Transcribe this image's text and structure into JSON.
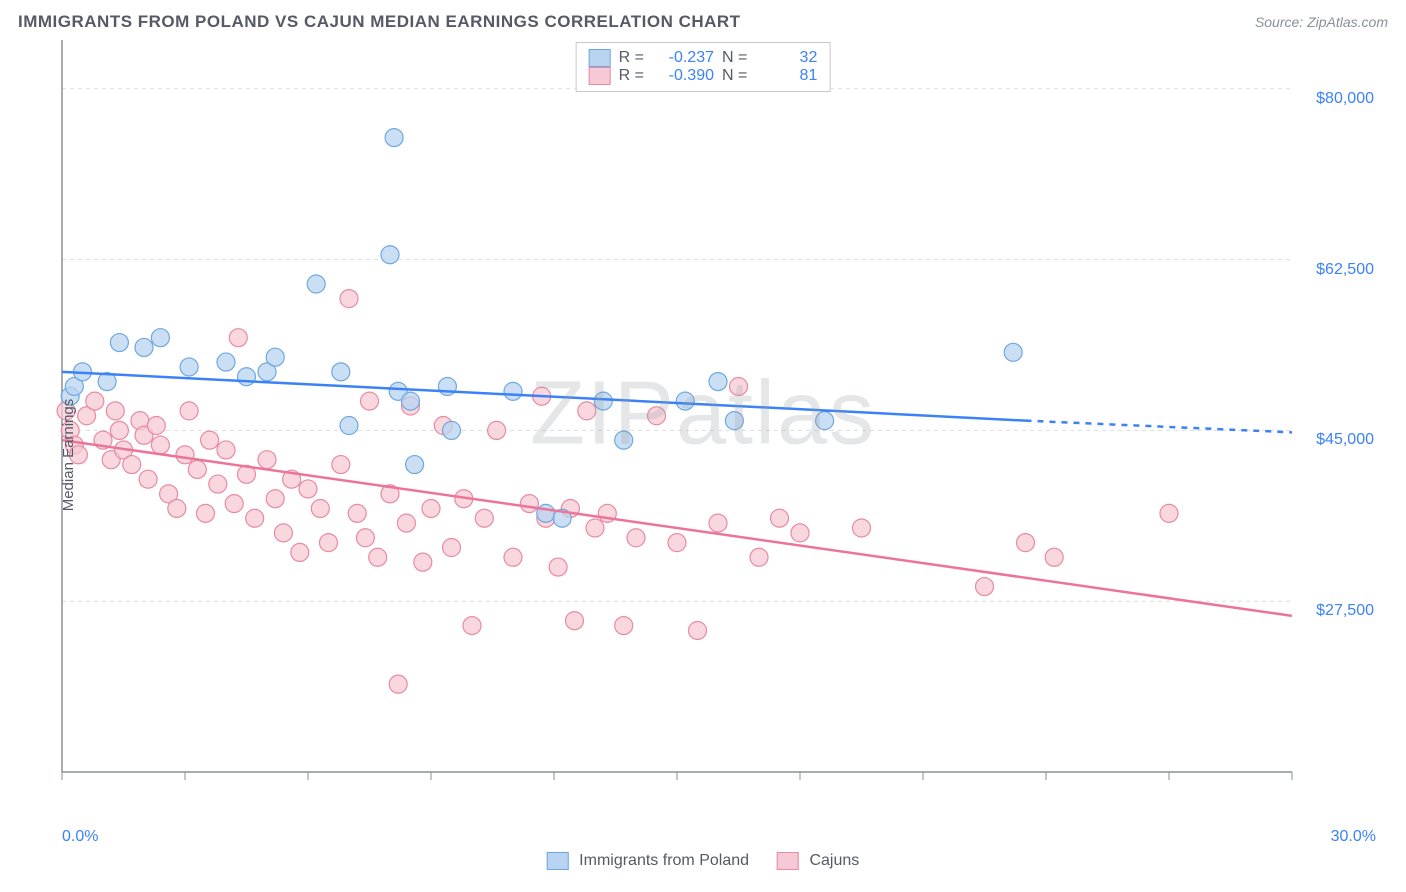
{
  "header": {
    "title": "IMMIGRANTS FROM POLAND VS CAJUN MEDIAN EARNINGS CORRELATION CHART",
    "source_label": "Source: ZipAtlas.com"
  },
  "watermark": "ZIPatlas",
  "chart": {
    "type": "scatter",
    "ylabel": "Median Earnings",
    "background_color": "#ffffff",
    "grid_color": "#dcdde0",
    "axis_color": "#8a8f99",
    "series_colors": {
      "poland_fill": "#b8d4f0",
      "poland_stroke": "#6fa8e0",
      "poland_line": "#3b82f6",
      "cajun_fill": "#f6c9d4",
      "cajun_stroke": "#e88aa2",
      "cajun_line": "#ec7498"
    },
    "marker_radius": 9,
    "marker_opacity": 0.75,
    "line_width": 2.5,
    "xlim": [
      0,
      30
    ],
    "ylim": [
      10000,
      85000
    ],
    "x_ticks": [
      0,
      3,
      6,
      9,
      12,
      15,
      18,
      21,
      24,
      27,
      30
    ],
    "y_gridlines": [
      27500,
      45000,
      62500,
      80000
    ],
    "x_tick_labels": {
      "start": "0.0%",
      "end": "30.0%"
    },
    "y_tick_labels": [
      "$80,000",
      "$62,500",
      "$45,000",
      "$27,500"
    ],
    "stats_box": {
      "rows": [
        {
          "swatch_fill": "#b8d4f0",
          "swatch_stroke": "#6fa8e0",
          "r_label": "R =",
          "r": "-0.237",
          "n_label": "N =",
          "n": "32"
        },
        {
          "swatch_fill": "#f6c9d4",
          "swatch_stroke": "#e88aa2",
          "r_label": "R =",
          "r": "-0.390",
          "n_label": "N =",
          "n": "81"
        }
      ]
    },
    "bottom_legend": [
      {
        "swatch_fill": "#b8d4f0",
        "swatch_stroke": "#6fa8e0",
        "label": "Immigrants from Poland"
      },
      {
        "swatch_fill": "#f6c9d4",
        "swatch_stroke": "#e88aa2",
        "label": "Cajuns"
      }
    ],
    "trend_lines": {
      "poland": {
        "x1": 0,
        "y1": 51000,
        "x2": 23.5,
        "y2": 46000,
        "dash_to_x": 30,
        "dash_to_y": 44800
      },
      "cajun": {
        "x1": 0,
        "y1": 44000,
        "x2": 30,
        "y2": 26000
      }
    },
    "series": {
      "poland": [
        [
          0.2,
          48500
        ],
        [
          0.3,
          49500
        ],
        [
          0.5,
          51000
        ],
        [
          1.1,
          50000
        ],
        [
          1.4,
          54000
        ],
        [
          2.0,
          53500
        ],
        [
          2.4,
          54500
        ],
        [
          3.1,
          51500
        ],
        [
          4.0,
          52000
        ],
        [
          4.5,
          50500
        ],
        [
          5.0,
          51000
        ],
        [
          5.2,
          52500
        ],
        [
          6.2,
          60000
        ],
        [
          6.8,
          51000
        ],
        [
          7.0,
          45500
        ],
        [
          8.0,
          63000
        ],
        [
          8.1,
          75000
        ],
        [
          8.2,
          49000
        ],
        [
          8.5,
          48000
        ],
        [
          8.6,
          41500
        ],
        [
          9.4,
          49500
        ],
        [
          9.5,
          45000
        ],
        [
          11.0,
          49000
        ],
        [
          11.8,
          36500
        ],
        [
          12.2,
          36000
        ],
        [
          13.2,
          48000
        ],
        [
          13.7,
          44000
        ],
        [
          15.2,
          48000
        ],
        [
          16.0,
          50000
        ],
        [
          16.4,
          46000
        ],
        [
          18.6,
          46000
        ],
        [
          23.2,
          53000
        ]
      ],
      "cajun": [
        [
          0.1,
          47000
        ],
        [
          0.2,
          45000
        ],
        [
          0.3,
          43500
        ],
        [
          0.4,
          42500
        ],
        [
          0.6,
          46500
        ],
        [
          0.8,
          48000
        ],
        [
          1.0,
          44000
        ],
        [
          1.2,
          42000
        ],
        [
          1.3,
          47000
        ],
        [
          1.4,
          45000
        ],
        [
          1.5,
          43000
        ],
        [
          1.7,
          41500
        ],
        [
          1.9,
          46000
        ],
        [
          2.0,
          44500
        ],
        [
          2.1,
          40000
        ],
        [
          2.3,
          45500
        ],
        [
          2.4,
          43500
        ],
        [
          2.6,
          38500
        ],
        [
          2.8,
          37000
        ],
        [
          3.0,
          42500
        ],
        [
          3.1,
          47000
        ],
        [
          3.3,
          41000
        ],
        [
          3.5,
          36500
        ],
        [
          3.6,
          44000
        ],
        [
          3.8,
          39500
        ],
        [
          4.0,
          43000
        ],
        [
          4.2,
          37500
        ],
        [
          4.3,
          54500
        ],
        [
          4.5,
          40500
        ],
        [
          4.7,
          36000
        ],
        [
          5.0,
          42000
        ],
        [
          5.2,
          38000
        ],
        [
          5.4,
          34500
        ],
        [
          5.6,
          40000
        ],
        [
          5.8,
          32500
        ],
        [
          6.0,
          39000
        ],
        [
          6.3,
          37000
        ],
        [
          6.5,
          33500
        ],
        [
          6.8,
          41500
        ],
        [
          7.0,
          58500
        ],
        [
          7.2,
          36500
        ],
        [
          7.4,
          34000
        ],
        [
          7.5,
          48000
        ],
        [
          7.7,
          32000
        ],
        [
          8.0,
          38500
        ],
        [
          8.2,
          19000
        ],
        [
          8.4,
          35500
        ],
        [
          8.5,
          47500
        ],
        [
          8.8,
          31500
        ],
        [
          9.0,
          37000
        ],
        [
          9.3,
          45500
        ],
        [
          9.5,
          33000
        ],
        [
          9.8,
          38000
        ],
        [
          10.0,
          25000
        ],
        [
          10.3,
          36000
        ],
        [
          10.6,
          45000
        ],
        [
          11.0,
          32000
        ],
        [
          11.4,
          37500
        ],
        [
          11.7,
          48500
        ],
        [
          11.8,
          36000
        ],
        [
          12.1,
          31000
        ],
        [
          12.4,
          37000
        ],
        [
          12.5,
          25500
        ],
        [
          12.8,
          47000
        ],
        [
          13.0,
          35000
        ],
        [
          13.3,
          36500
        ],
        [
          13.7,
          25000
        ],
        [
          14.0,
          34000
        ],
        [
          14.5,
          46500
        ],
        [
          15.0,
          33500
        ],
        [
          15.5,
          24500
        ],
        [
          16.0,
          35500
        ],
        [
          16.5,
          49500
        ],
        [
          17.0,
          32000
        ],
        [
          17.5,
          36000
        ],
        [
          18.0,
          34500
        ],
        [
          19.5,
          35000
        ],
        [
          22.5,
          29000
        ],
        [
          23.5,
          33500
        ],
        [
          24.2,
          32000
        ],
        [
          27.0,
          36500
        ]
      ]
    }
  }
}
